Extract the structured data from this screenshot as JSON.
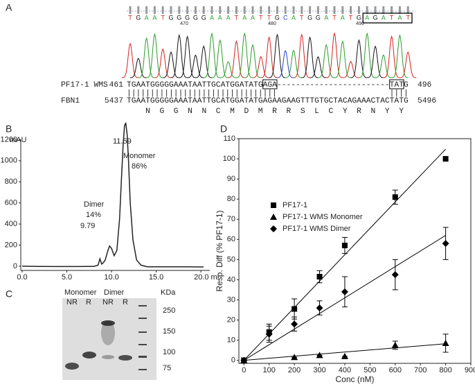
{
  "panel_labels": [
    "A",
    "B",
    "C",
    "D"
  ],
  "trace": {
    "bases": "TGAATGGGGGAAATAATTGCATGGATATGAGATAT",
    "positions": [
      470,
      480,
      490
    ]
  },
  "alignment": {
    "rows": [
      {
        "name": "PF17-1 WMS",
        "start": 461,
        "seq": "TGAATGGGGGAAATAATTGCATGGATATGAGA------------------------TATG",
        "end": 496
      },
      {
        "name": "FBN1",
        "start": 5437,
        "seq": "TGAATGGGGGAAATAATTGCATGGATATGAGAAGAAGTTTGTGCTACAGAAACTACTATG",
        "end": 5496
      }
    ],
    "match": "||||||||||||||||||||||||||||||||                        ||||",
    "protein": "N  G  G  N  N  C  M  D  M  R  R  S  L  C  Y  R  N  Y  Y"
  },
  "gel": {
    "groups": [
      "Monomer",
      "Dimer"
    ],
    "lanes": [
      "NR",
      "R",
      "NR",
      "R"
    ],
    "unit": "KDa",
    "markers": [
      "250",
      "150",
      "100",
      "75"
    ]
  },
  "chart_data": [
    {
      "type": "line",
      "ylabel": "mAU",
      "color": "#222",
      "x": [
        0,
        2,
        4,
        6,
        8,
        8.5,
        8.7,
        8.9,
        9.1,
        9.3,
        9.6,
        9.79,
        10,
        10.3,
        10.6,
        10.9,
        11.1,
        11.3,
        11.45,
        11.59,
        11.75,
        11.9,
        12.1,
        12.4,
        12.8,
        13.3,
        14,
        16,
        18,
        20.3
      ],
      "values": [
        0,
        -2,
        -3,
        -3,
        -2,
        10,
        70,
        20,
        35,
        60,
        150,
        192,
        170,
        100,
        150,
        450,
        800,
        1150,
        1330,
        1360,
        1250,
        1000,
        600,
        250,
        60,
        10,
        -5,
        -6,
        -6,
        -7
      ],
      "xlim": [
        0,
        21
      ],
      "ylim": [
        -40,
        1400
      ],
      "xticks": [
        {
          "value": 0,
          "label": "0.0"
        },
        {
          "value": 5,
          "label": "5.0"
        },
        {
          "value": 10,
          "label": "10.0"
        },
        {
          "value": 15,
          "label": "15.0"
        },
        {
          "value": 20,
          "label": "20.0 ml"
        }
      ],
      "yticks": [
        0,
        200,
        400,
        600,
        800,
        1000,
        1200
      ],
      "annotations": [
        "11.59",
        "Monomer",
        "86%",
        "Dimer",
        "14%",
        "9.79"
      ]
    },
    {
      "type": "scatter",
      "xlabel": "Conc (nM)",
      "ylabel": "Resp. Diff (% PF17-1)",
      "legend": "upper left",
      "xlim": [
        -20,
        900
      ],
      "ylim": [
        -1.5,
        110
      ],
      "xticks": [
        0,
        100,
        200,
        300,
        400,
        500,
        600,
        700,
        800,
        900
      ],
      "yticks": [
        0,
        10,
        20,
        30,
        40,
        50,
        60,
        70,
        80,
        90,
        100,
        110
      ],
      "series": [
        {
          "name": "PF17-1",
          "marker": "square",
          "color": "#000",
          "x": [
            0,
            100,
            200,
            300,
            400,
            600,
            800
          ],
          "values": [
            0,
            14,
            25.5,
            41.5,
            57,
            81,
            100
          ],
          "errors": [
            0,
            4,
            5,
            3,
            4,
            3.5,
            0
          ],
          "fit_slope": 0.131
        },
        {
          "name": "PF17-1 WMS Monomer",
          "marker": "triangle",
          "color": "#000",
          "x": [
            0,
            200,
            300,
            400,
            600,
            800
          ],
          "values": [
            0,
            1.5,
            2.5,
            2,
            7.5,
            8.5
          ],
          "errors": [
            0,
            0,
            0,
            0,
            2,
            4.5
          ],
          "fit_slope": 0.0103
        },
        {
          "name": "PF17-1 WMS Dimer",
          "marker": "diamond",
          "color": "#000",
          "x": [
            0,
            100,
            200,
            300,
            400,
            600,
            800
          ],
          "values": [
            0,
            13,
            18,
            26,
            34,
            42.5,
            58
          ],
          "errors": [
            0,
            4,
            3.5,
            3.5,
            7.5,
            7.5,
            8
          ],
          "fit_slope": 0.0775
        }
      ]
    }
  ]
}
